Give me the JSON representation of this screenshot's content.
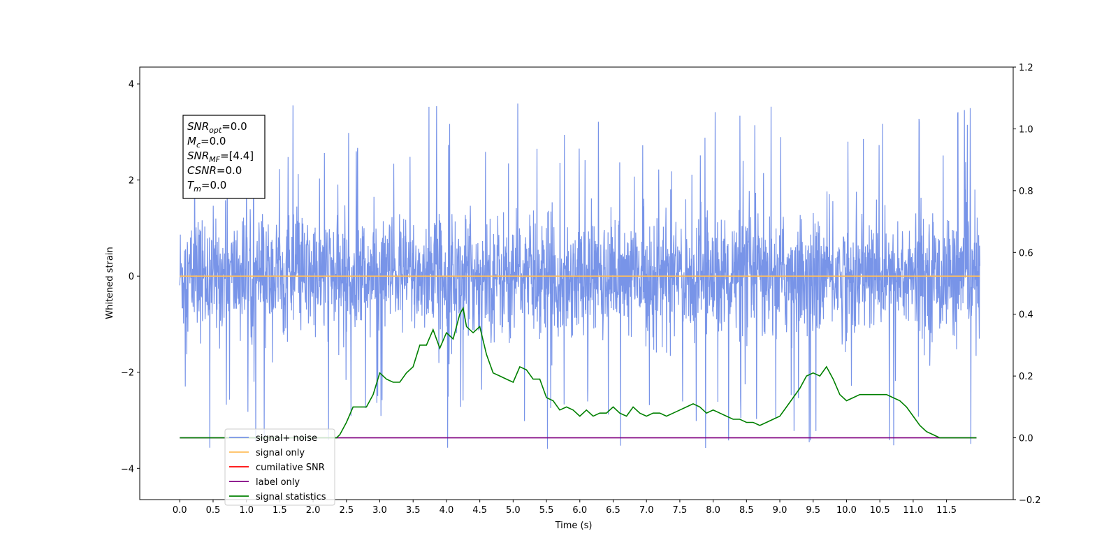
{
  "chart_data": {
    "type": "line",
    "xlabel": "Time (s)",
    "ylabel": "Whitened strain",
    "xlim": [
      -0.6,
      12.5
    ],
    "ylim": [
      -4.65,
      4.35
    ],
    "y2lim": [
      -0.2,
      1.2
    ],
    "x_ticks": [
      "0.0",
      "0.5",
      "1.0",
      "1.5",
      "2.0",
      "2.5",
      "3.0",
      "3.5",
      "4.0",
      "4.5",
      "5.0",
      "5.5",
      "6.0",
      "6.5",
      "7.0",
      "7.5",
      "8.0",
      "8.5",
      "9.0",
      "9.5",
      "10.0",
      "10.5",
      "11.0",
      "11.5"
    ],
    "y_ticks": [
      "−4",
      "−2",
      "0",
      "2",
      "4"
    ],
    "y2_ticks": [
      "−0.2",
      "0.0",
      "0.2",
      "0.4",
      "0.6",
      "0.8",
      "1.0",
      "1.2"
    ],
    "grid": false,
    "legend_position": "lower-left",
    "info_box": {
      "lines": [
        {
          "main": "SNR",
          "sub": "opt",
          "rest": "=0.0"
        },
        {
          "main": "M",
          "sub": "c",
          "rest": "=0.0"
        },
        {
          "main": "SNR",
          "sub": "MF",
          "rest": "=[4.4]"
        },
        {
          "main": "CSNR",
          "sub": "",
          "rest": "=0.0"
        },
        {
          "main": "T",
          "sub": "m",
          "rest": "=0.0"
        }
      ]
    },
    "series": [
      {
        "name": "signal+ noise",
        "color": "#7894e8",
        "axis": "left",
        "kind": "noise",
        "x_range": [
          0.0,
          12.0
        ],
        "typical_band": [
          -1.5,
          1.5
        ],
        "extremes": [
          -3.7,
          4.0
        ]
      },
      {
        "name": "signal only",
        "color": "#ffbe5c",
        "axis": "left",
        "x": [
          0.0,
          12.0
        ],
        "values": [
          0.0,
          0.0
        ]
      },
      {
        "name": "cumilative SNR",
        "color": "#ff0000",
        "axis": "right",
        "x": [],
        "values": []
      },
      {
        "name": "label only",
        "color": "#800080",
        "axis": "right",
        "x": [
          0.0,
          11.95
        ],
        "values": [
          0.0,
          0.0
        ]
      },
      {
        "name": "signal statistics",
        "color": "#008000",
        "axis": "right",
        "x": [
          0.0,
          2.3,
          2.35,
          2.4,
          2.5,
          2.6,
          2.7,
          2.8,
          2.9,
          3.0,
          3.1,
          3.2,
          3.3,
          3.4,
          3.5,
          3.6,
          3.7,
          3.8,
          3.9,
          4.0,
          4.1,
          4.2,
          4.25,
          4.3,
          4.4,
          4.5,
          4.6,
          4.7,
          4.8,
          4.9,
          5.0,
          5.1,
          5.2,
          5.3,
          5.4,
          5.5,
          5.6,
          5.7,
          5.8,
          5.9,
          6.0,
          6.1,
          6.2,
          6.3,
          6.4,
          6.5,
          6.6,
          6.7,
          6.8,
          6.9,
          7.0,
          7.1,
          7.2,
          7.3,
          7.4,
          7.5,
          7.6,
          7.7,
          7.8,
          7.9,
          8.0,
          8.1,
          8.2,
          8.3,
          8.4,
          8.5,
          8.6,
          8.7,
          8.8,
          8.9,
          9.0,
          9.1,
          9.2,
          9.3,
          9.4,
          9.5,
          9.6,
          9.7,
          9.8,
          9.9,
          10.0,
          10.1,
          10.2,
          10.3,
          10.4,
          10.5,
          10.6,
          10.7,
          10.8,
          10.9,
          11.0,
          11.1,
          11.2,
          11.3,
          11.4,
          11.5,
          11.6,
          11.7,
          11.8,
          11.9,
          11.95
        ],
        "values": [
          0.0,
          0.0,
          0.0,
          0.01,
          0.05,
          0.1,
          0.1,
          0.1,
          0.14,
          0.21,
          0.19,
          0.18,
          0.18,
          0.21,
          0.23,
          0.3,
          0.3,
          0.35,
          0.29,
          0.34,
          0.32,
          0.4,
          0.42,
          0.36,
          0.34,
          0.36,
          0.27,
          0.21,
          0.2,
          0.19,
          0.18,
          0.23,
          0.22,
          0.19,
          0.19,
          0.13,
          0.12,
          0.09,
          0.1,
          0.09,
          0.07,
          0.09,
          0.07,
          0.08,
          0.08,
          0.1,
          0.08,
          0.07,
          0.1,
          0.08,
          0.07,
          0.08,
          0.08,
          0.07,
          0.08,
          0.09,
          0.1,
          0.11,
          0.1,
          0.08,
          0.09,
          0.08,
          0.07,
          0.06,
          0.06,
          0.05,
          0.05,
          0.04,
          0.05,
          0.06,
          0.07,
          0.1,
          0.13,
          0.16,
          0.2,
          0.21,
          0.2,
          0.23,
          0.19,
          0.14,
          0.12,
          0.13,
          0.14,
          0.14,
          0.14,
          0.14,
          0.14,
          0.13,
          0.12,
          0.1,
          0.07,
          0.04,
          0.02,
          0.01,
          0.0,
          0.0,
          0.0,
          0.0,
          0.0,
          0.0,
          0.0
        ]
      }
    ]
  }
}
